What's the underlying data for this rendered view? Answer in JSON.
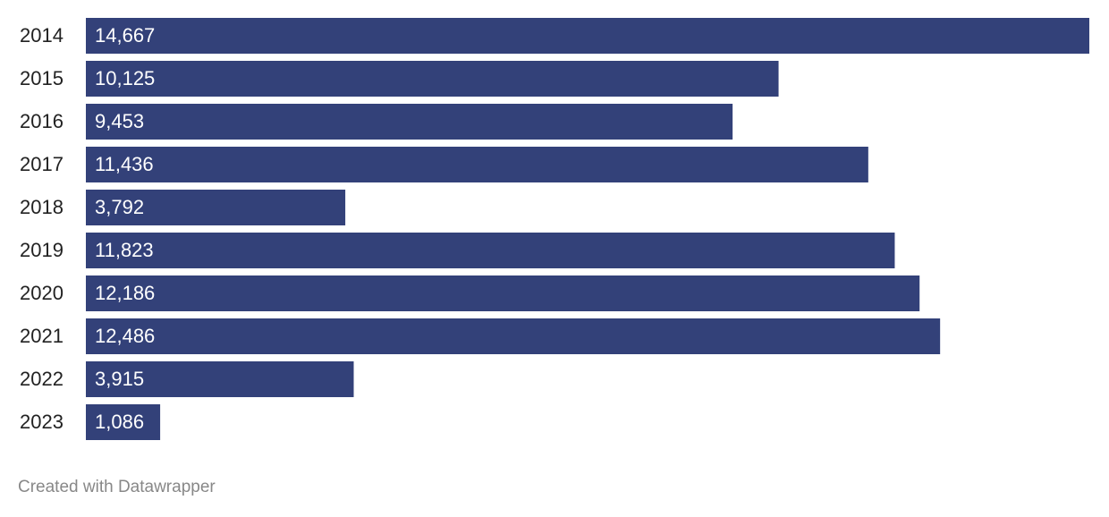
{
  "chart_data": {
    "type": "bar",
    "orientation": "horizontal",
    "categories": [
      "2014",
      "2015",
      "2016",
      "2017",
      "2018",
      "2019",
      "2020",
      "2021",
      "2022",
      "2023"
    ],
    "values": [
      14667,
      10125,
      9453,
      11436,
      3792,
      11823,
      12186,
      12486,
      3915,
      1086
    ],
    "value_labels": [
      "14,667",
      "10,125",
      "9,453",
      "11,436",
      "3,792",
      "11,823",
      "12,186",
      "12,486",
      "3,915",
      "1,086"
    ],
    "color": "#334179",
    "footer": "Created with Datawrapper"
  }
}
